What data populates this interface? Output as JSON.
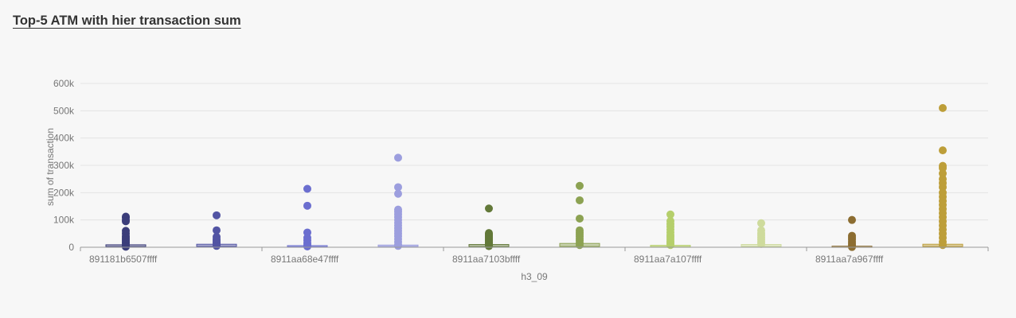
{
  "chart_data": {
    "type": "box-strip",
    "title": "Top-5 ATM with hier transaction sum",
    "xlabel": "h3_09",
    "ylabel": "sum of transaction",
    "ylim": [
      0,
      600000
    ],
    "yticks": [
      0,
      100000,
      200000,
      300000,
      400000,
      500000,
      600000
    ],
    "ytick_labels": [
      "0",
      "100k",
      "200k",
      "300k",
      "400k",
      "500k",
      "600k"
    ],
    "categories": [
      "891181b6507ffff",
      "8911aa68e47ffff",
      "8911aa7103bffff",
      "8911aa7a107ffff",
      "8911aa7a967ffff"
    ],
    "groups": [
      {
        "category": "891181b6507ffff",
        "series": [
          {
            "color": "#3b3d7a",
            "box": [
              2000,
              9000
            ],
            "points": [
              112000,
              108000,
              100000,
              95000,
              60000,
              50000,
              40000,
              35000,
              30000,
              25000,
              20000,
              15000,
              10000,
              5000,
              2000
            ]
          },
          {
            "color": "#5254a3",
            "box": [
              3000,
              11000
            ],
            "points": [
              117000,
              62000,
              38000,
              30000,
              25000,
              20000,
              15000,
              10000,
              5000
            ]
          }
        ]
      },
      {
        "category": "8911aa68e47ffff",
        "series": [
          {
            "color": "#6b6ecf",
            "box": [
              2000,
              6000
            ],
            "points": [
              214000,
              152000,
              54000,
              35000,
              25000,
              15000,
              8000,
              3000
            ]
          },
          {
            "color": "#9c9ede",
            "box": [
              3000,
              8000
            ],
            "points": [
              328000,
              220000,
              196000,
              138000,
              130000,
              120000,
              110000,
              100000,
              90000,
              80000,
              70000,
              60000,
              50000,
              40000,
              30000,
              20000,
              10000,
              5000
            ]
          }
        ]
      },
      {
        "category": "8911aa7103bffff",
        "series": [
          {
            "color": "#637939",
            "box": [
              2000,
              10000
            ],
            "points": [
              142000,
              52000,
              48000,
              44000,
              40000,
              36000,
              32000,
              28000,
              24000,
              20000,
              16000,
              12000,
              8000,
              4000
            ]
          },
          {
            "color": "#8ca252",
            "box": [
              3000,
              14000
            ],
            "points": [
              225000,
              172000,
              105000,
              62000,
              55000,
              48000,
              40000,
              32000,
              24000,
              16000,
              8000
            ]
          }
        ]
      },
      {
        "category": "8911aa7a107ffff",
        "series": [
          {
            "color": "#b5cf6b",
            "box": [
              2000,
              7000
            ],
            "points": [
              120000,
              96000,
              85000,
              75000,
              65000,
              55000,
              45000,
              38000,
              30000,
              22000,
              15000,
              8000
            ]
          },
          {
            "color": "#cedb9c",
            "box": [
              3000,
              10000
            ],
            "points": [
              88000,
              62000,
              52000,
              44000,
              36000,
              28000,
              20000,
              12000
            ]
          }
        ]
      },
      {
        "category": "8911aa7a967ffff",
        "series": [
          {
            "color": "#8c6d31",
            "box": [
              1000,
              4000
            ],
            "points": [
              100000,
              42000,
              35000,
              28000,
              20000,
              12000,
              5000,
              1000
            ]
          },
          {
            "color": "#bd9e39",
            "box": [
              3000,
              11000
            ],
            "points": [
              510000,
              355000,
              298000,
              290000,
              270000,
              250000,
              235000,
              220000,
              200000,
              185000,
              170000,
              155000,
              140000,
              125000,
              110000,
              95000,
              80000,
              65000,
              50000,
              35000,
              20000,
              8000
            ]
          }
        ]
      }
    ]
  }
}
